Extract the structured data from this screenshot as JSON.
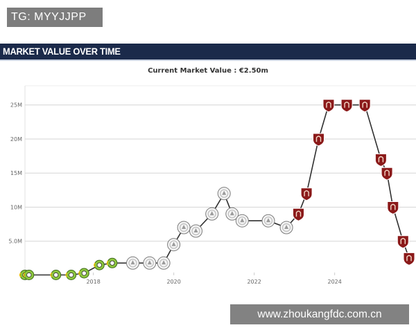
{
  "badge": {
    "text": "TG: MYYJJPP"
  },
  "header": {
    "title": "MARKET VALUE OVER TIME"
  },
  "subtitle": "Current Market Value : €2.50m",
  "watermark": {
    "text": "www.zhoukangfdc.com.cn"
  },
  "colors": {
    "header_bg": "#1b2a4a",
    "line": "#2f2f2f",
    "club_green": "#8dc63f",
    "club_silver": "#bdbdbd",
    "club_maroon": "#8b1a1a"
  },
  "chart_data": {
    "type": "line",
    "title": "",
    "xlabel": "",
    "ylabel": "",
    "y_unit": "M",
    "ylim": [
      0,
      27
    ],
    "xlim": [
      2016.3,
      2025.85
    ],
    "yticks": [
      {
        "value": 5,
        "label": "5.0M"
      },
      {
        "value": 10,
        "label": "10M"
      },
      {
        "value": 15,
        "label": "15M"
      },
      {
        "value": 20,
        "label": "20M"
      },
      {
        "value": 25,
        "label": "25M"
      }
    ],
    "xticks": [
      {
        "value": 2018,
        "label": "2018"
      },
      {
        "value": 2020,
        "label": "2020"
      },
      {
        "value": 2022,
        "label": "2022"
      },
      {
        "value": 2024,
        "label": "2024"
      }
    ],
    "grid": true,
    "series": [
      {
        "points": [
          {
            "x": 2016.3,
            "y": 0.05,
            "club": "green"
          },
          {
            "x": 2016.4,
            "y": 0.05,
            "club": "green"
          },
          {
            "x": 2017.07,
            "y": 0.05,
            "club": "green"
          },
          {
            "x": 2017.45,
            "y": 0.05,
            "club": "green"
          },
          {
            "x": 2017.77,
            "y": 0.3,
            "club": "green"
          },
          {
            "x": 2018.15,
            "y": 1.5,
            "club": "green"
          },
          {
            "x": 2018.47,
            "y": 1.8,
            "club": "green"
          },
          {
            "x": 2018.98,
            "y": 1.8,
            "club": "silver"
          },
          {
            "x": 2019.4,
            "y": 1.8,
            "club": "silver"
          },
          {
            "x": 2019.75,
            "y": 1.8,
            "club": "silver"
          },
          {
            "x": 2020.0,
            "y": 4.5,
            "club": "silver"
          },
          {
            "x": 2020.25,
            "y": 7.0,
            "club": "silver"
          },
          {
            "x": 2020.55,
            "y": 6.5,
            "club": "silver"
          },
          {
            "x": 2020.95,
            "y": 9.0,
            "club": "silver"
          },
          {
            "x": 2021.25,
            "y": 12.0,
            "club": "silver"
          },
          {
            "x": 2021.45,
            "y": 9.0,
            "club": "silver"
          },
          {
            "x": 2021.7,
            "y": 8.0,
            "club": "silver"
          },
          {
            "x": 2022.35,
            "y": 8.0,
            "club": "silver"
          },
          {
            "x": 2022.8,
            "y": 7.0,
            "club": "silver"
          },
          {
            "x": 2023.1,
            "y": 9.0,
            "club": "maroon"
          },
          {
            "x": 2023.3,
            "y": 12.0,
            "club": "maroon"
          },
          {
            "x": 2023.6,
            "y": 20.0,
            "club": "maroon"
          },
          {
            "x": 2023.85,
            "y": 25.0,
            "club": "maroon"
          },
          {
            "x": 2024.3,
            "y": 25.0,
            "club": "maroon"
          },
          {
            "x": 2024.75,
            "y": 25.0,
            "club": "maroon"
          },
          {
            "x": 2025.15,
            "y": 17.0,
            "club": "maroon"
          },
          {
            "x": 2025.3,
            "y": 15.0,
            "club": "maroon"
          },
          {
            "x": 2025.45,
            "y": 10.0,
            "club": "maroon"
          },
          {
            "x": 2025.7,
            "y": 5.0,
            "club": "maroon"
          },
          {
            "x": 2025.85,
            "y": 2.5,
            "club": "maroon"
          }
        ]
      }
    ]
  }
}
